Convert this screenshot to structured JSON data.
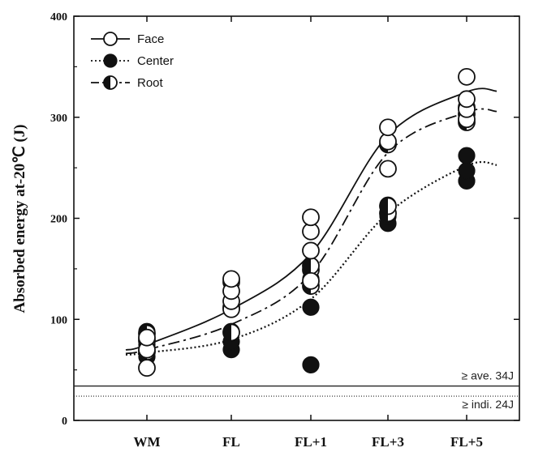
{
  "chart_data": {
    "type": "scatter",
    "ylabel": "Absorbed energy at-20℃ (J)",
    "xlabel": "",
    "categories": [
      "WM",
      "FL",
      "FL+1",
      "FL+3",
      "FL+5"
    ],
    "ylim": [
      0,
      400
    ],
    "yticks": [
      "0",
      "100",
      "200",
      "300",
      "400"
    ],
    "grid": false,
    "legend_position": "top-left",
    "series": [
      {
        "name": "Face",
        "marker": "open-circle",
        "line_style": "solid",
        "points": [
          {
            "category": "WM",
            "values": [
              52,
              70,
              82
            ]
          },
          {
            "category": "FL",
            "values": [
              110,
              118,
              128,
              140
            ]
          },
          {
            "category": "FL+1",
            "values": [
              138,
              168,
              187,
              201
            ]
          },
          {
            "category": "FL+3",
            "values": [
              249,
              276,
              290
            ]
          },
          {
            "category": "FL+5",
            "values": [
              298,
              308,
              318,
              340
            ]
          }
        ],
        "fit": [
          {
            "category": "WM",
            "value": 75
          },
          {
            "category": "FL",
            "value": 110
          },
          {
            "category": "FL+1",
            "value": 165
          },
          {
            "category": "FL+3",
            "value": 282
          },
          {
            "category": "FL+5",
            "value": 325
          }
        ]
      },
      {
        "name": "Center",
        "marker": "filled-circle",
        "line_style": "dotted",
        "points": [
          {
            "category": "WM",
            "values": [
              63,
              75,
              88
            ]
          },
          {
            "category": "FL",
            "values": [
              70,
              78,
              88
            ]
          },
          {
            "category": "FL+1",
            "values": [
              55,
              112,
              140
            ]
          },
          {
            "category": "FL+3",
            "values": [
              195,
              202,
              213,
              273
            ]
          },
          {
            "category": "FL+5",
            "values": [
              237,
              247,
              262
            ]
          }
        ],
        "fit": [
          {
            "category": "WM",
            "value": 67
          },
          {
            "category": "FL",
            "value": 80
          },
          {
            "category": "FL+1",
            "value": 120
          },
          {
            "category": "FL+3",
            "value": 205
          },
          {
            "category": "FL+5",
            "value": 252
          }
        ]
      },
      {
        "name": "Root",
        "marker": "half-filled-circle",
        "line_style": "dash-dot",
        "points": [
          {
            "category": "WM",
            "values": [
              68,
              79,
              86
            ]
          },
          {
            "category": "FL",
            "values": [
              87,
              112,
              137
            ]
          },
          {
            "category": "FL+1",
            "values": [
              133,
              149,
              153
            ]
          },
          {
            "category": "FL+3",
            "values": [
              205,
              212,
              273
            ]
          },
          {
            "category": "FL+5",
            "values": [
              295,
              303,
              310
            ]
          }
        ],
        "fit": [
          {
            "category": "WM",
            "value": 70
          },
          {
            "category": "FL",
            "value": 95
          },
          {
            "category": "FL+1",
            "value": 145
          },
          {
            "category": "FL+3",
            "value": 265
          },
          {
            "category": "FL+5",
            "value": 305
          }
        ]
      }
    ],
    "reference_lines": [
      {
        "value": 34,
        "label": "≥ ave. 34J",
        "style": "solid"
      },
      {
        "value": 24,
        "label": "≥ indi. 24J",
        "style": "dotted"
      }
    ]
  }
}
